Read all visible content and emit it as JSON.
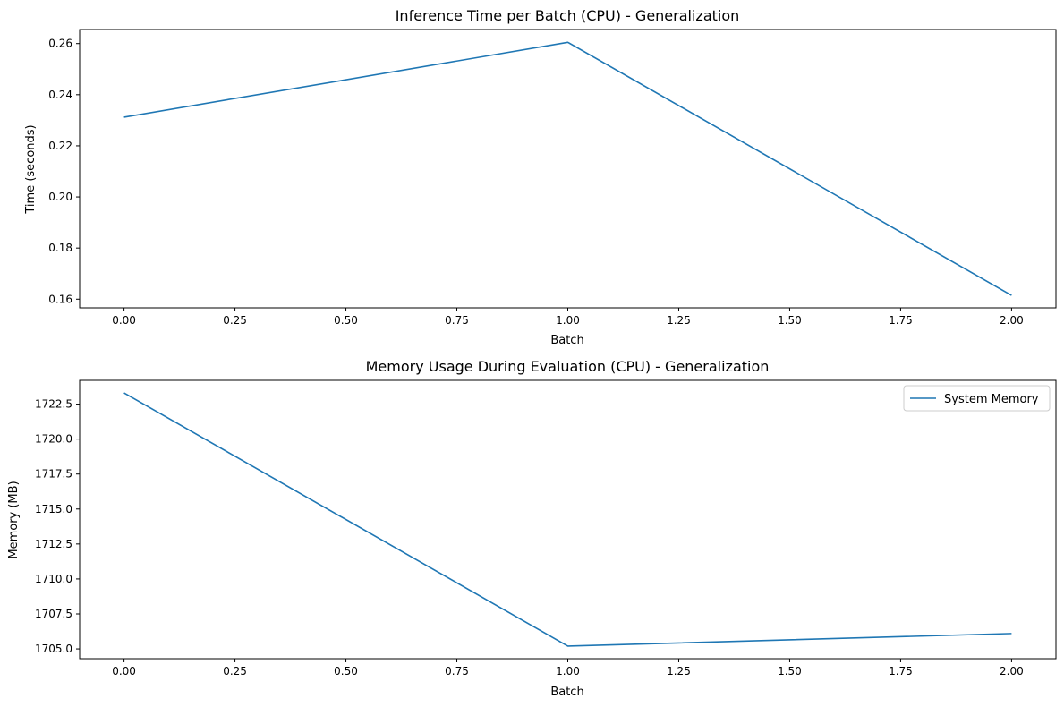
{
  "chart_data": [
    {
      "type": "line",
      "title": "Inference Time per Batch (CPU) - Generalization",
      "xlabel": "Batch",
      "ylabel": "Time (seconds)",
      "xlim": [
        -0.1,
        2.1
      ],
      "ylim": [
        0.1566,
        0.2655
      ],
      "xticks": [
        0.0,
        0.25,
        0.5,
        0.75,
        1.0,
        1.25,
        1.5,
        1.75,
        2.0
      ],
      "xtick_labels": [
        "0.00",
        "0.25",
        "0.50",
        "0.75",
        "1.00",
        "1.25",
        "1.50",
        "1.75",
        "2.00"
      ],
      "yticks": [
        0.16,
        0.18,
        0.2,
        0.22,
        0.24,
        0.26
      ],
      "ytick_labels": [
        "0.16",
        "0.18",
        "0.20",
        "0.22",
        "0.24",
        "0.26"
      ],
      "grid": false,
      "legend": null,
      "series": [
        {
          "color": "#1f77b4",
          "x": [
            0,
            1,
            2
          ],
          "y": [
            0.2312,
            0.2605,
            0.1615
          ]
        }
      ]
    },
    {
      "type": "line",
      "title": "Memory Usage During Evaluation (CPU) - Generalization",
      "xlabel": "Batch",
      "ylabel": "Memory (MB)",
      "xlim": [
        -0.1,
        2.1
      ],
      "ylim": [
        1704.3,
        1724.2
      ],
      "xticks": [
        0.0,
        0.25,
        0.5,
        0.75,
        1.0,
        1.25,
        1.5,
        1.75,
        2.0
      ],
      "xtick_labels": [
        "0.00",
        "0.25",
        "0.50",
        "0.75",
        "1.00",
        "1.25",
        "1.50",
        "1.75",
        "2.00"
      ],
      "yticks": [
        1705.0,
        1707.5,
        1710.0,
        1712.5,
        1715.0,
        1717.5,
        1720.0,
        1722.5
      ],
      "ytick_labels": [
        "1705.0",
        "1707.5",
        "1710.0",
        "1712.5",
        "1715.0",
        "1717.5",
        "1720.0",
        "1722.5"
      ],
      "grid": false,
      "legend": "top-right",
      "series": [
        {
          "name": "System Memory",
          "color": "#1f77b4",
          "x": [
            0,
            1,
            2
          ],
          "y": [
            1723.3,
            1705.2,
            1706.1
          ]
        }
      ]
    }
  ]
}
